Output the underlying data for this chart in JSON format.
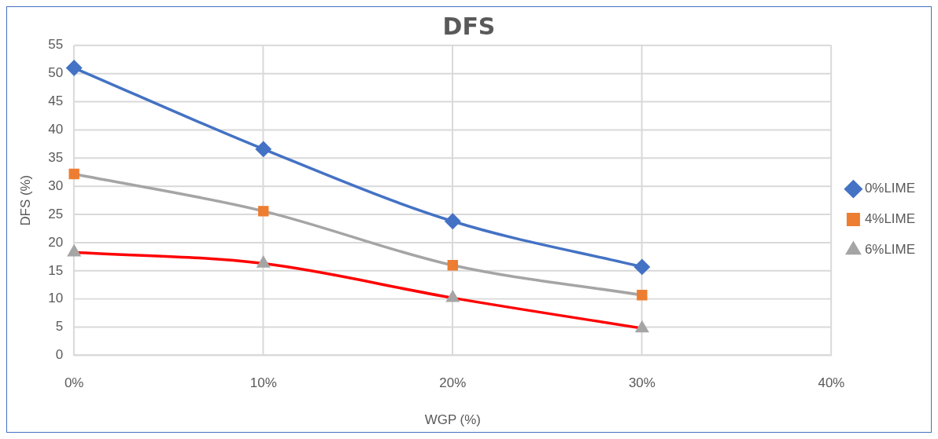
{
  "chart_data": {
    "type": "line",
    "title": "DFS",
    "xlabel": "WGP (%)",
    "ylabel": "DFS (%)",
    "categories": [
      "0%",
      "10%",
      "20%",
      "30%",
      "40%"
    ],
    "ylim": [
      0,
      55
    ],
    "yticks": [
      0,
      5,
      10,
      15,
      20,
      25,
      30,
      35,
      40,
      45,
      50,
      55
    ],
    "grid": true,
    "legend": "right",
    "series": [
      {
        "name": "0%LIME",
        "color": "#4472c4",
        "colors": [
          "#4472c4",
          "#4472c4",
          "#4472c4",
          "#4472c4",
          null
        ],
        "marker": "diamond",
        "values": [
          51,
          36.6,
          23.8,
          15.7,
          null
        ]
      },
      {
        "name": "4%LIME",
        "color": "#a5a5a5",
        "colors": [
          "#ed7d31",
          "#ed7d31",
          "#ed7d31",
          "#ed7d31",
          null
        ],
        "marker": "square",
        "values": [
          32.2,
          25.6,
          16.0,
          10.7,
          null
        ]
      },
      {
        "name": "6%LIME",
        "color": "#ff0000",
        "colors": [
          "#a5a5a5",
          "#a5a5a5",
          "#a5a5a5",
          "#a5a5a5",
          null
        ],
        "marker": "triangle",
        "values": [
          18.3,
          16.3,
          10.2,
          4.8,
          null
        ]
      }
    ]
  }
}
